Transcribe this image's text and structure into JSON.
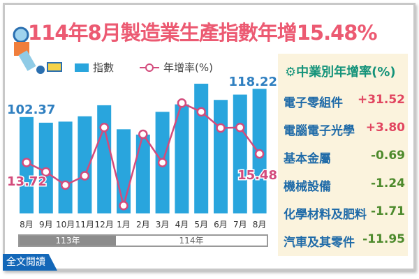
{
  "title": "114年8月製造業生產指數年增15.48%",
  "colors": {
    "bar": "#29a5dd",
    "line": "#d34b7c",
    "title": "#ec5a72",
    "positive": "#e14560",
    "negative": "#4d8a2c",
    "sector_name": "#1e6aa8"
  },
  "chart_data": {
    "type": "bar+line",
    "categories": [
      "8月",
      "9月",
      "10月",
      "11月",
      "12月",
      "1月",
      "2月",
      "3月",
      "4月",
      "5月",
      "6月",
      "7月",
      "8月"
    ],
    "year_groups": [
      {
        "label": "113年",
        "span": 5
      },
      {
        "label": "114年",
        "span": 8
      }
    ],
    "series": [
      {
        "name": "指數",
        "type": "bar",
        "values": [
          102.37,
          99.2,
          99.8,
          102.8,
          109.0,
          95.5,
          92.5,
          105.3,
          109.5,
          121.1,
          112.0,
          115.0,
          118.22
        ]
      },
      {
        "name": "年增率(%)",
        "type": "line",
        "values": [
          13.72,
          11.8,
          9.1,
          11.0,
          20.9,
          4.9,
          19.5,
          13.7,
          25.9,
          24.1,
          20.8,
          20.9,
          15.48
        ]
      }
    ],
    "data_labels": {
      "bar_first": "102.37",
      "bar_last": "118.22",
      "line_first": "13.72",
      "line_last": "15.48"
    },
    "legend": {
      "bar": "指數",
      "line": "年增率(%)"
    },
    "grid": false
  },
  "sectors": {
    "heading": "中業別年增率(%)",
    "items": [
      {
        "name": "電子零組件",
        "value": "+31.52"
      },
      {
        "name": "電腦電子光學",
        "value": "+3.80"
      },
      {
        "name": "基本金屬",
        "value": "-0.69"
      },
      {
        "name": "機械設備",
        "value": "-1.24"
      },
      {
        "name": "化學材料及肥料",
        "value": "-1.71"
      },
      {
        "name": "汽車及其零件",
        "value": "-11.95"
      }
    ]
  },
  "read_all": "全文閱讀"
}
